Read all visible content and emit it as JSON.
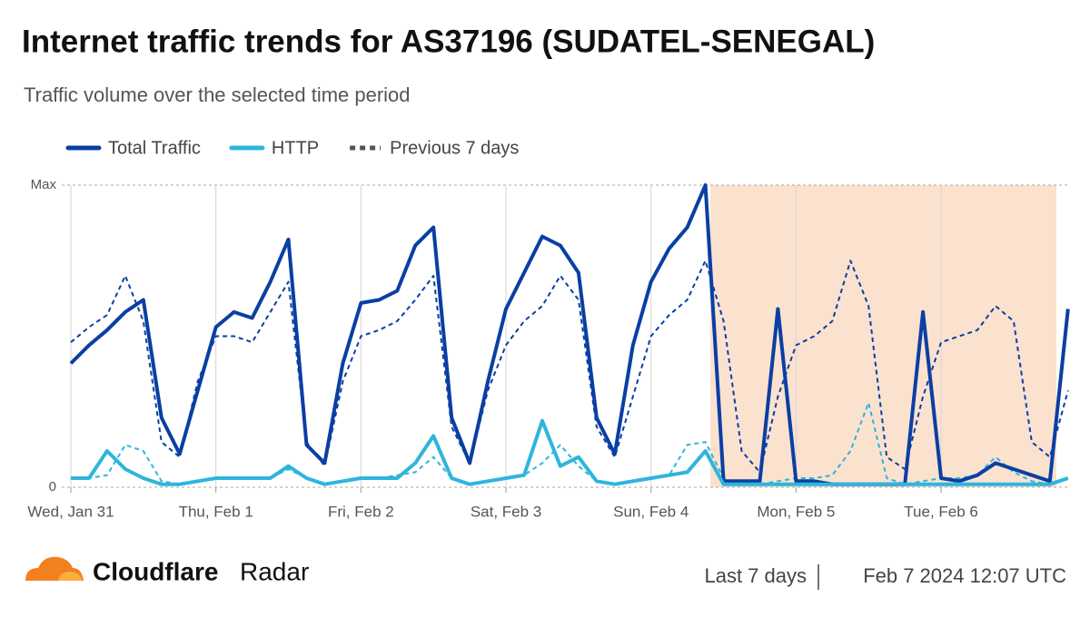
{
  "chart_data": {
    "type": "line",
    "title": "Internet traffic trends for AS37196 (SUDATEL-SENEGAL)",
    "subtitle": "Traffic volume over the selected time period",
    "categories": [
      "Wed, Jan 31",
      null,
      null,
      null,
      null,
      null,
      null,
      null,
      "Thu, Feb 1",
      null,
      null,
      null,
      null,
      null,
      null,
      null,
      "Fri, Feb 2",
      null,
      null,
      null,
      null,
      null,
      null,
      null,
      "Sat, Feb 3",
      null,
      null,
      null,
      null,
      null,
      null,
      null,
      "Sun, Feb 4",
      null,
      null,
      null,
      null,
      null,
      null,
      null,
      "Mon, Feb 5",
      null,
      null,
      null,
      null,
      null,
      null,
      null,
      "Tue, Feb 6",
      null,
      null,
      null,
      null,
      null,
      null,
      null
    ],
    "ylim": [
      0,
      1
    ],
    "yticks": [
      0,
      {
        "value": 1,
        "label": "Max"
      }
    ],
    "grid": true,
    "series": [
      {
        "name": "Total Traffic",
        "color": "#0a3fa3",
        "dashed": false,
        "width": 4,
        "values": [
          0.41,
          0.47,
          0.52,
          0.58,
          0.62,
          0.23,
          0.11,
          0.32,
          0.53,
          0.58,
          0.56,
          0.68,
          0.82,
          0.14,
          0.08,
          0.41,
          0.61,
          0.62,
          0.65,
          0.8,
          0.86,
          0.23,
          0.08,
          0.35,
          0.59,
          0.71,
          0.83,
          0.8,
          0.71,
          0.23,
          0.11,
          0.47,
          0.68,
          0.79,
          0.86,
          1.0,
          0.02,
          0.02,
          0.02,
          0.59,
          0.02,
          0.02,
          0.01,
          0.01,
          0.01,
          0.01,
          0.01,
          0.58,
          0.03,
          0.02,
          0.04,
          0.08,
          0.06,
          0.04,
          0.02,
          0.59
        ]
      },
      {
        "name": "HTTP",
        "color": "#2eb5dc",
        "dashed": false,
        "width": 4,
        "values": [
          0.03,
          0.03,
          0.12,
          0.06,
          0.03,
          0.01,
          0.01,
          0.02,
          0.03,
          0.03,
          0.03,
          0.03,
          0.07,
          0.03,
          0.01,
          0.02,
          0.03,
          0.03,
          0.03,
          0.08,
          0.17,
          0.03,
          0.01,
          0.02,
          0.03,
          0.04,
          0.22,
          0.07,
          0.1,
          0.02,
          0.01,
          0.02,
          0.03,
          0.04,
          0.05,
          0.12,
          0.01,
          0.01,
          0.01,
          0.01,
          0.01,
          0.01,
          0.01,
          0.01,
          0.01,
          0.01,
          0.01,
          0.01,
          0.01,
          0.01,
          0.01,
          0.01,
          0.01,
          0.01,
          0.01,
          0.03
        ]
      },
      {
        "name": "Previous 7 days",
        "color": "#0a3fa3",
        "legend_color": "#555555",
        "dashed": true,
        "width": 2,
        "values": [
          0.48,
          0.53,
          0.57,
          0.7,
          0.55,
          0.15,
          0.1,
          0.35,
          0.5,
          0.5,
          0.48,
          0.58,
          0.68,
          0.15,
          0.07,
          0.35,
          0.5,
          0.52,
          0.55,
          0.62,
          0.7,
          0.2,
          0.08,
          0.32,
          0.47,
          0.55,
          0.6,
          0.7,
          0.62,
          0.2,
          0.1,
          0.3,
          0.5,
          0.57,
          0.62,
          0.75,
          0.55,
          0.12,
          0.05,
          0.3,
          0.47,
          0.5,
          0.55,
          0.75,
          0.6,
          0.1,
          0.06,
          0.3,
          0.48,
          0.5,
          0.52,
          0.6,
          0.55,
          0.15,
          0.1,
          0.32
        ]
      },
      {
        "color": "#2eb5dc",
        "dashed": true,
        "width": 2,
        "values": [
          0.03,
          0.03,
          0.04,
          0.14,
          0.12,
          0.02,
          0.01,
          0.02,
          0.03,
          0.03,
          0.03,
          0.03,
          0.06,
          0.03,
          0.01,
          0.02,
          0.03,
          0.03,
          0.04,
          0.05,
          0.1,
          0.03,
          0.01,
          0.02,
          0.03,
          0.04,
          0.08,
          0.14,
          0.07,
          0.02,
          0.01,
          0.02,
          0.03,
          0.04,
          0.14,
          0.15,
          0.03,
          0.01,
          0.01,
          0.02,
          0.03,
          0.03,
          0.04,
          0.12,
          0.28,
          0.03,
          0.01,
          0.02,
          0.03,
          0.03,
          0.04,
          0.1,
          0.05,
          0.02,
          0.01,
          0.03
        ]
      }
    ]
  },
  "footer": {
    "brand": [
      "Cloudflare",
      "Radar"
    ],
    "period": "Last 7 days",
    "timestamp": "Feb 7 2024 12:07 UTC"
  }
}
